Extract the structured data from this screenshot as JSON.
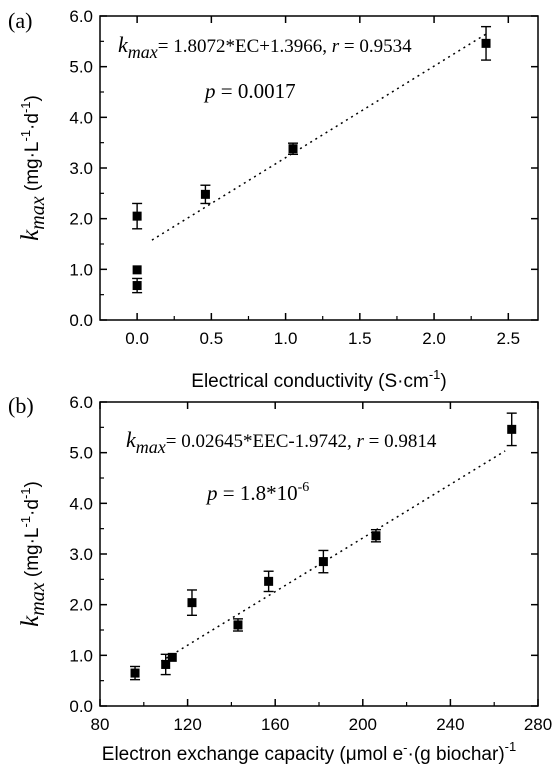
{
  "chart_data": [
    {
      "type": "scatter",
      "panel_label": "(a)",
      "xlabel": "Electrical conductivity (S·cm⁻¹)",
      "xlabel_parts": {
        "main": "Electrical conductivity (S·cm",
        "sup": "-1",
        "close": ")"
      },
      "ylabel_parts": {
        "k": "k",
        "sub": "max",
        "unit_open": " (mg·L",
        "sup1": "-1",
        "mid": "·d",
        "sup2": "-1",
        "close": ")"
      },
      "xlim": [
        -0.25,
        2.7
      ],
      "ylim": [
        0,
        6.0
      ],
      "xticks": [
        0.0,
        0.5,
        1.0,
        1.5,
        2.0,
        2.5
      ],
      "xtick_labels": [
        "0.0",
        "0.5",
        "1.0",
        "1.5",
        "2.0",
        "2.5"
      ],
      "yticks": [
        0,
        1,
        2,
        3,
        4,
        5,
        6
      ],
      "ytick_labels": [
        "0.0",
        "1.0",
        "2.0",
        "3.0",
        "4.0",
        "5.0",
        "6.0"
      ],
      "points": [
        {
          "x": 0.0,
          "y": 0.68,
          "err": 0.14
        },
        {
          "x": 0.0,
          "y": 0.99,
          "err": 0.0
        },
        {
          "x": 0.0,
          "y": 2.05,
          "err": 0.25
        },
        {
          "x": 0.46,
          "y": 2.48,
          "err": 0.18
        },
        {
          "x": 1.05,
          "y": 3.38,
          "err": 0.11
        },
        {
          "x": 2.35,
          "y": 5.46,
          "err": 0.33
        }
      ],
      "fit": {
        "slope": 1.8072,
        "intercept": 1.3966,
        "x_range": [
          0.1,
          2.35
        ]
      },
      "annotations": {
        "eq_k": "k",
        "eq_sub": "max",
        "eq_text": "= 1.8072*EC+1.3966, ",
        "eq_r": "r",
        "eq_r_val": " = 0.9534",
        "p_sym": "p",
        "p_text": " = 0.0017",
        "p_sup": ""
      }
    },
    {
      "type": "scatter",
      "panel_label": "(b)",
      "xlabel": "Electron exchange capacity (μmol e⁻·(g biochar)⁻¹)",
      "xlabel_parts": {
        "main": "Electron exchange capacity (μmol e",
        "sup": "-",
        "mid": "·(g biochar)",
        "sup2": "-1"
      },
      "ylabel_parts": {
        "k": "k",
        "sub": "max",
        "unit_open": " (mg·L",
        "sup1": "-1",
        "mid": "·d",
        "sup2": "-1",
        "close": ")"
      },
      "xlim": [
        80,
        280
      ],
      "ylim": [
        0,
        6.0
      ],
      "xticks": [
        80,
        120,
        160,
        200,
        240,
        280
      ],
      "xtick_labels": [
        "80",
        "120",
        "160",
        "200",
        "240",
        "280"
      ],
      "yticks": [
        0,
        1,
        2,
        3,
        4,
        5,
        6
      ],
      "ytick_labels": [
        "0.0",
        "1.0",
        "2.0",
        "3.0",
        "4.0",
        "5.0",
        "6.0"
      ],
      "points": [
        {
          "x": 96,
          "y": 0.65,
          "err": 0.13
        },
        {
          "x": 110,
          "y": 0.82,
          "err": 0.2
        },
        {
          "x": 113,
          "y": 0.96,
          "err": 0.0
        },
        {
          "x": 122,
          "y": 2.04,
          "err": 0.25
        },
        {
          "x": 143,
          "y": 1.6,
          "err": 0.12
        },
        {
          "x": 157,
          "y": 2.46,
          "err": 0.2
        },
        {
          "x": 182,
          "y": 2.85,
          "err": 0.22
        },
        {
          "x": 206,
          "y": 3.36,
          "err": 0.12
        },
        {
          "x": 268,
          "y": 5.46,
          "err": 0.32
        }
      ],
      "fit": {
        "slope": 0.02645,
        "intercept": -1.9742,
        "x_range": [
          108,
          265
        ]
      },
      "annotations": {
        "eq_k": "k",
        "eq_sub": "max",
        "eq_text": "= 0.02645*EEC-1.9742, ",
        "eq_r": "r",
        "eq_r_val": " = 0.9814",
        "p_sym": "p",
        "p_text": " = 1.8*10",
        "p_sup": "-6"
      }
    }
  ]
}
